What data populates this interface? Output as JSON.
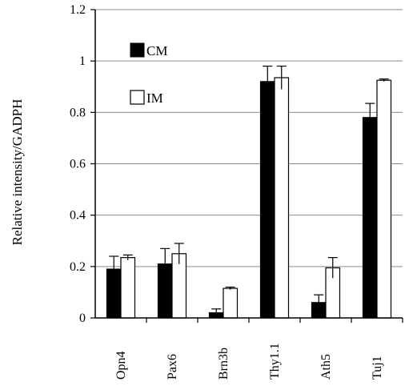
{
  "chart_data": {
    "type": "bar",
    "title": "",
    "xlabel": "",
    "ylabel": "Relative intensity/GADPH",
    "ylim": [
      0,
      1.2
    ],
    "yticks": [
      "0",
      "0.2",
      "0.4",
      "0.6",
      "0.8",
      "1",
      "1.2"
    ],
    "categories": [
      "Opn4",
      "Pax6",
      "Brn3b",
      "Thy1.1",
      "Ath5",
      "Tuj1"
    ],
    "series": [
      {
        "name": "CM",
        "color": "#000000",
        "values": [
          0.19,
          0.21,
          0.02,
          0.92,
          0.06,
          0.78
        ],
        "errors": [
          0.05,
          0.06,
          0.015,
          0.06,
          0.03,
          0.055
        ]
      },
      {
        "name": "IM",
        "color": "#ffffff",
        "values": [
          0.235,
          0.25,
          0.115,
          0.935,
          0.195,
          0.925
        ],
        "errors": [
          0.01,
          0.04,
          0.005,
          0.045,
          0.04,
          0.005
        ]
      }
    ],
    "grid": true,
    "legend_position": "top-left"
  }
}
